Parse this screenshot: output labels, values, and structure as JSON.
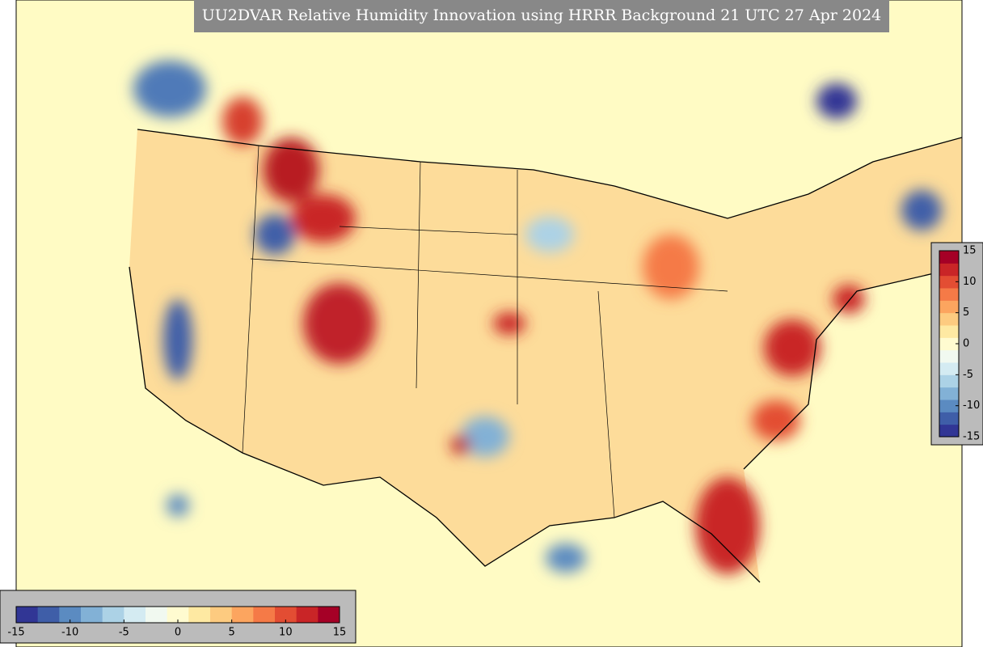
{
  "title": "UU2DVAR Relative Humidity Innovation using HRRR Background 21 UTC 27 Apr 2024",
  "colormap": [
    "#313695",
    "#3f5ea8",
    "#5b8bc1",
    "#82b1d6",
    "#acd2e6",
    "#d4ebf2",
    "#f1f9f0",
    "#fffbd0",
    "#fee9a2",
    "#fdcb80",
    "#fca55f",
    "#f57a47",
    "#e34d33",
    "#c92527",
    "#a50026"
  ],
  "colorbar_right": {
    "range": [
      -15,
      15
    ],
    "ticks": [
      15,
      10,
      5,
      0,
      -5,
      -10,
      -15
    ]
  },
  "colorbar_bottom": {
    "range": [
      -15,
      15
    ],
    "ticks": [
      -15,
      -10,
      -5,
      0,
      5,
      10,
      15
    ]
  }
}
